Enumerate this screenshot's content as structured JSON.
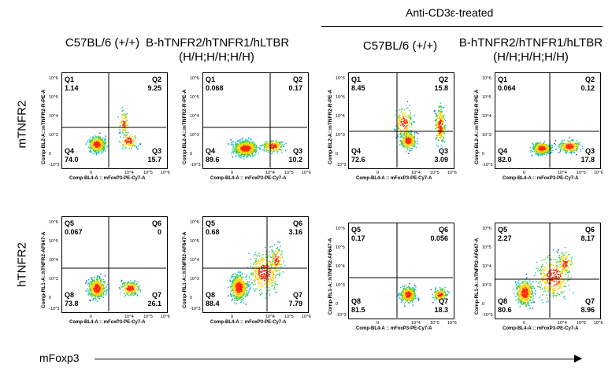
{
  "header": {
    "treated_label": "Anti-CD3ε-treated",
    "columns": [
      {
        "line1": "C57BL/6 (+/+)",
        "line2": ""
      },
      {
        "line1": "B-hTNFR2/hTNFR1/hLTBR",
        "line2": "(H/H;H/H;H/H)"
      },
      {
        "line1": "C57BL/6 (+/+)",
        "line2": ""
      },
      {
        "line1": "B-hTNFR2/hTNFR1/hLTBR",
        "line2": "(H/H;H/H;H/H)"
      }
    ]
  },
  "rows": [
    {
      "label": "mTNFR2",
      "y_axis_label": "Comp-BL2-A::mTNFR2-R-PE-A"
    },
    {
      "label": "hTNFR2",
      "y_axis_label": "Comp-RL1-A::hTNFR2-AF647-A"
    }
  ],
  "x_axis_label": "Comp-BL4-A :: mFoxP3-PE-Cy7-A",
  "footer": {
    "x_marker": "mFoxp3"
  },
  "tick_labels": {
    "y": [
      "10^6",
      "10^5",
      "10^4",
      "10^3",
      "0",
      "-10^3"
    ],
    "x": [
      "0",
      "10^4",
      "10^5",
      "10^6"
    ]
  },
  "panels": [
    {
      "quadrants": {
        "tl": {
          "name": "Q1",
          "value": "1.14"
        },
        "tr": {
          "name": "Q2",
          "value": "9.25"
        },
        "bl": {
          "name": "Q4",
          "value": "74.0"
        },
        "br": {
          "name": "Q3",
          "value": "15.7"
        }
      }
    },
    {
      "quadrants": {
        "tl": {
          "name": "Q1",
          "value": "0.068"
        },
        "tr": {
          "name": "Q2",
          "value": "0.17"
        },
        "bl": {
          "name": "Q4",
          "value": "89.6"
        },
        "br": {
          "name": "Q3",
          "value": "10.2"
        }
      }
    },
    {
      "quadrants": {
        "tl": {
          "name": "Q1",
          "value": "8.45"
        },
        "tr": {
          "name": "Q2",
          "value": "15.8"
        },
        "bl": {
          "name": "Q4",
          "value": "72.6"
        },
        "br": {
          "name": "Q3",
          "value": "3.09"
        }
      }
    },
    {
      "quadrants": {
        "tl": {
          "name": "Q1",
          "value": "0.064"
        },
        "tr": {
          "name": "Q2",
          "value": "0.12"
        },
        "bl": {
          "name": "Q4",
          "value": "82.0"
        },
        "br": {
          "name": "Q3",
          "value": "17.8"
        }
      }
    },
    {
      "quadrants": {
        "tl": {
          "name": "Q5",
          "value": "0.067"
        },
        "tr": {
          "name": "Q6",
          "value": "0"
        },
        "bl": {
          "name": "Q8",
          "value": "73.8"
        },
        "br": {
          "name": "Q7",
          "value": "26.1"
        }
      }
    },
    {
      "quadrants": {
        "tl": {
          "name": "Q5",
          "value": "0.68"
        },
        "tr": {
          "name": "Q6",
          "value": "3.16"
        },
        "bl": {
          "name": "Q8",
          "value": "88.4"
        },
        "br": {
          "name": "Q7",
          "value": "7.79"
        }
      }
    },
    {
      "quadrants": {
        "tl": {
          "name": "Q5",
          "value": "0.17"
        },
        "tr": {
          "name": "Q6",
          "value": "0.056"
        },
        "bl": {
          "name": "Q8",
          "value": "81.5"
        },
        "br": {
          "name": "Q7",
          "value": "18.3"
        }
      }
    },
    {
      "quadrants": {
        "tl": {
          "name": "Q5",
          "value": "2.27"
        },
        "tr": {
          "name": "Q6",
          "value": "8.17"
        },
        "bl": {
          "name": "Q8",
          "value": "80.6"
        },
        "br": {
          "name": "Q7",
          "value": "8.96"
        }
      }
    }
  ]
}
